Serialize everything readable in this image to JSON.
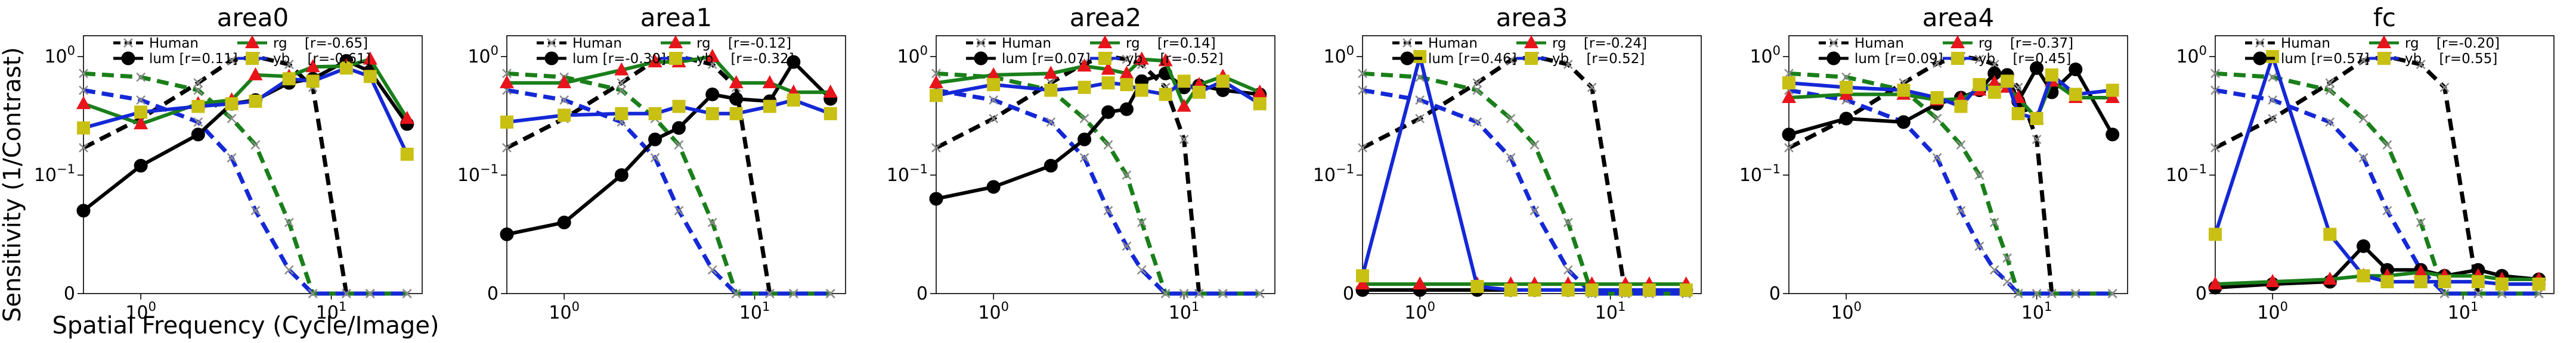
{
  "figure": {
    "ylabel": "Sensitivity (1/Contrast)",
    "xlabel": "Spatial Frequency (Cycle/Image)"
  },
  "styles": {
    "human": {
      "color": "#808080",
      "marker": "x"
    },
    "lum": {
      "color": "#000000",
      "marker": "circle"
    },
    "rg": {
      "color": "#1a7f1a",
      "marker": "triangle",
      "marker_color": "#e8141b"
    },
    "yb": {
      "color": "#1428d6",
      "marker": "square",
      "marker_color": "#c8c012"
    }
  },
  "chart_data": [
    {
      "type": "line",
      "title": "area0",
      "x_scale": "log",
      "y_scale": "symlog",
      "xlim": [
        0.5,
        30
      ],
      "ylim": [
        0,
        1.5
      ],
      "x_ticks": [
        {
          "v": 1,
          "label": "10^0"
        },
        {
          "v": 10,
          "label": "10^1"
        }
      ],
      "y_ticks": [
        {
          "v": 0,
          "label": "0"
        },
        {
          "v": 0.1,
          "label": "10^-1"
        },
        {
          "v": 1,
          "label": "10^0"
        }
      ],
      "legend": {
        "placement": "top",
        "entries": [
          {
            "key": "human",
            "text": "Human"
          },
          {
            "key": "lum",
            "text": "lum [r=0.11]"
          },
          {
            "key": "rg",
            "text": "rg    [r=-0.65]"
          },
          {
            "key": "yb",
            "text": "yb    [r=-0.61]"
          }
        ]
      },
      "x": [
        0.5,
        1,
        2,
        3,
        4,
        6,
        8,
        12,
        16,
        25
      ],
      "human": {
        "lum": [
          0.17,
          0.3,
          0.6,
          0.93,
          1.0,
          0.86,
          0.55,
          0.0,
          0.0,
          0.0
        ],
        "rg": [
          0.72,
          0.67,
          0.52,
          0.3,
          0.18,
          0.06,
          0.0,
          0.0,
          0.0,
          0.0
        ],
        "yb": [
          0.52,
          0.43,
          0.28,
          0.14,
          0.07,
          0.02,
          0.0,
          0.0,
          0.0,
          0.0
        ]
      },
      "series": [
        {
          "key": "lum",
          "values": [
            0.07,
            0.12,
            0.22,
            0.4,
            0.43,
            0.6,
            0.65,
            0.92,
            0.75,
            0.27
          ]
        },
        {
          "key": "rg",
          "values": [
            0.4,
            0.27,
            0.4,
            0.43,
            0.7,
            0.68,
            0.82,
            0.83,
            0.95,
            0.3
          ]
        },
        {
          "key": "yb",
          "values": [
            0.25,
            0.34,
            0.38,
            0.4,
            0.42,
            0.65,
            0.62,
            0.8,
            0.68,
            0.15
          ]
        }
      ]
    },
    {
      "type": "line",
      "title": "area1",
      "x_scale": "log",
      "y_scale": "symlog",
      "xlim": [
        0.5,
        30
      ],
      "ylim": [
        0,
        1.5
      ],
      "x_ticks": [
        {
          "v": 1,
          "label": "10^0"
        },
        {
          "v": 10,
          "label": "10^1"
        }
      ],
      "y_ticks": [
        {
          "v": 0,
          "label": "0"
        },
        {
          "v": 0.1,
          "label": "10^-1"
        },
        {
          "v": 1,
          "label": "10^0"
        }
      ],
      "legend": {
        "placement": "top",
        "entries": [
          {
            "key": "human",
            "text": "Human"
          },
          {
            "key": "lum",
            "text": "lum [r=-0.30]"
          },
          {
            "key": "rg",
            "text": "rg    [r=-0.12]"
          },
          {
            "key": "yb",
            "text": "yb    [r=-0.32]"
          }
        ]
      },
      "x": [
        0.5,
        1,
        2,
        3,
        4,
        6,
        8,
        12,
        16,
        25
      ],
      "human": {
        "lum": [
          0.17,
          0.3,
          0.6,
          0.93,
          1.0,
          0.86,
          0.55,
          0.0,
          0.0,
          0.0
        ],
        "rg": [
          0.72,
          0.67,
          0.52,
          0.3,
          0.18,
          0.06,
          0.0,
          0.0,
          0.0,
          0.0
        ],
        "yb": [
          0.52,
          0.43,
          0.28,
          0.14,
          0.07,
          0.02,
          0.0,
          0.0,
          0.0,
          0.0
        ]
      },
      "series": [
        {
          "key": "lum",
          "values": [
            0.05,
            0.06,
            0.1,
            0.2,
            0.25,
            0.48,
            0.44,
            0.42,
            0.9,
            0.44
          ]
        },
        {
          "key": "rg",
          "values": [
            0.6,
            0.6,
            0.77,
            0.9,
            0.9,
            1.0,
            0.6,
            0.6,
            0.5,
            0.5
          ]
        },
        {
          "key": "yb",
          "values": [
            0.28,
            0.32,
            0.33,
            0.33,
            0.38,
            0.33,
            0.33,
            0.38,
            0.43,
            0.33
          ]
        }
      ]
    },
    {
      "type": "line",
      "title": "area2",
      "x_scale": "log",
      "y_scale": "symlog",
      "xlim": [
        0.5,
        30
      ],
      "ylim": [
        0,
        1.5
      ],
      "x_ticks": [
        {
          "v": 1,
          "label": "10^0"
        },
        {
          "v": 10,
          "label": "10^1"
        }
      ],
      "y_ticks": [
        {
          "v": 0,
          "label": "0"
        },
        {
          "v": 0.1,
          "label": "10^-1"
        },
        {
          "v": 1,
          "label": "10^0"
        }
      ],
      "legend": {
        "placement": "top",
        "entries": [
          {
            "key": "human",
            "text": "Human"
          },
          {
            "key": "lum",
            "text": "lum [r=0.07]"
          },
          {
            "key": "rg",
            "text": "rg    [r=0.14]"
          },
          {
            "key": "yb",
            "text": "yb    [r=-0.52]"
          }
        ]
      },
      "x": [
        0.5,
        1,
        2,
        3,
        4,
        5,
        6,
        8,
        10,
        12,
        16,
        25
      ],
      "human": {
        "lum": [
          0.17,
          0.3,
          0.6,
          0.88,
          1.0,
          0.95,
          0.86,
          0.55,
          0.2,
          0.0,
          0.0,
          0.0
        ],
        "rg": [
          0.72,
          0.67,
          0.52,
          0.3,
          0.18,
          0.1,
          0.06,
          0.0,
          0.0,
          0.0,
          0.0,
          0.0
        ],
        "yb": [
          0.52,
          0.43,
          0.28,
          0.14,
          0.07,
          0.04,
          0.02,
          0.0,
          0.0,
          0.0,
          0.0,
          0.0
        ]
      },
      "series": [
        {
          "key": "lum",
          "values": [
            0.08,
            0.09,
            0.12,
            0.2,
            0.34,
            0.36,
            0.62,
            0.72,
            0.55,
            0.57,
            0.52,
            0.48
          ]
        },
        {
          "key": "rg",
          "values": [
            0.6,
            0.7,
            0.72,
            0.83,
            0.78,
            0.72,
            0.95,
            0.92,
            0.38,
            0.58,
            0.68,
            0.5
          ]
        },
        {
          "key": "yb",
          "values": [
            0.47,
            0.58,
            0.52,
            0.55,
            0.6,
            0.58,
            0.52,
            0.48,
            0.62,
            0.5,
            0.62,
            0.4
          ]
        }
      ]
    },
    {
      "type": "line",
      "title": "area3",
      "x_scale": "log",
      "y_scale": "symlog",
      "xlim": [
        0.5,
        30
      ],
      "ylim": [
        0,
        1.5
      ],
      "x_ticks": [
        {
          "v": 1,
          "label": "10^0"
        },
        {
          "v": 10,
          "label": "10^1"
        }
      ],
      "y_ticks": [
        {
          "v": 0,
          "label": "0"
        },
        {
          "v": 0.1,
          "label": "10^-1"
        },
        {
          "v": 1,
          "label": "10^0"
        }
      ],
      "legend": {
        "placement": "top",
        "entries": [
          {
            "key": "human",
            "text": "Human"
          },
          {
            "key": "lum",
            "text": "lum [r=0.46]"
          },
          {
            "key": "rg",
            "text": "rg    [r=-0.24]"
          },
          {
            "key": "yb",
            "text": "yb    [r=0.52]"
          }
        ]
      },
      "x": [
        0.5,
        1,
        2,
        3,
        4,
        6,
        8,
        12,
        16,
        25
      ],
      "human": {
        "lum": [
          0.17,
          0.3,
          0.6,
          0.93,
          1.0,
          0.86,
          0.55,
          0.0,
          0.0,
          0.0
        ],
        "rg": [
          0.72,
          0.67,
          0.52,
          0.3,
          0.18,
          0.06,
          0.0,
          0.0,
          0.0,
          0.0
        ],
        "yb": [
          0.52,
          0.43,
          0.28,
          0.14,
          0.07,
          0.02,
          0.0,
          0.0,
          0.0,
          0.0
        ]
      },
      "series": [
        {
          "key": "lum",
          "values": [
            0.003,
            0.003,
            0.003,
            0.003,
            0.003,
            0.003,
            0.003,
            0.003,
            0.003,
            0.003
          ]
        },
        {
          "key": "rg",
          "values": [
            0.008,
            0.008,
            0.008,
            0.008,
            0.008,
            0.008,
            0.008,
            0.008,
            0.008,
            0.008
          ]
        },
        {
          "key": "yb",
          "values": [
            0.015,
            1.0,
            0.006,
            0.003,
            0.003,
            0.003,
            0.003,
            0.003,
            0.003,
            0.003
          ]
        }
      ]
    },
    {
      "type": "line",
      "title": "area4",
      "x_scale": "log",
      "y_scale": "symlog",
      "xlim": [
        0.5,
        30
      ],
      "ylim": [
        0,
        1.5
      ],
      "x_ticks": [
        {
          "v": 1,
          "label": "10^0"
        },
        {
          "v": 10,
          "label": "10^1"
        }
      ],
      "y_ticks": [
        {
          "v": 0,
          "label": "0"
        },
        {
          "v": 0.1,
          "label": "10^-1"
        },
        {
          "v": 1,
          "label": "10^0"
        }
      ],
      "legend": {
        "placement": "top",
        "entries": [
          {
            "key": "human",
            "text": "Human"
          },
          {
            "key": "lum",
            "text": "lum [r=0.09]"
          },
          {
            "key": "rg",
            "text": "rg    [r=-0.37]"
          },
          {
            "key": "yb",
            "text": "yb    [r=0.45]"
          }
        ]
      },
      "x": [
        0.5,
        1,
        2,
        3,
        4,
        5,
        6,
        7,
        8,
        10,
        12,
        16,
        25
      ],
      "human": {
        "lum": [
          0.17,
          0.3,
          0.6,
          0.88,
          1.0,
          0.95,
          0.86,
          0.7,
          0.55,
          0.2,
          0.0,
          0.0,
          0.0
        ],
        "rg": [
          0.72,
          0.67,
          0.52,
          0.3,
          0.18,
          0.1,
          0.06,
          0.03,
          0.0,
          0.0,
          0.0,
          0.0,
          0.0
        ],
        "yb": [
          0.52,
          0.43,
          0.28,
          0.14,
          0.07,
          0.04,
          0.02,
          0.01,
          0.0,
          0.0,
          0.0,
          0.0,
          0.0
        ]
      },
      "series": [
        {
          "key": "lum",
          "values": [
            0.22,
            0.3,
            0.28,
            0.4,
            0.45,
            0.52,
            0.72,
            0.7,
            0.42,
            0.8,
            0.5,
            0.78,
            0.22
          ]
        },
        {
          "key": "rg",
          "values": [
            0.45,
            0.48,
            0.48,
            0.43,
            0.44,
            0.52,
            0.6,
            0.55,
            0.45,
            0.3,
            0.62,
            0.45,
            0.45
          ]
        },
        {
          "key": "yb",
          "values": [
            0.6,
            0.55,
            0.52,
            0.45,
            0.38,
            0.58,
            0.5,
            0.62,
            0.33,
            0.3,
            0.7,
            0.48,
            0.52
          ]
        }
      ]
    },
    {
      "type": "line",
      "title": "fc",
      "x_scale": "log",
      "y_scale": "symlog",
      "xlim": [
        0.5,
        30
      ],
      "ylim": [
        0,
        1.5
      ],
      "x_ticks": [
        {
          "v": 1,
          "label": "10^0"
        },
        {
          "v": 10,
          "label": "10^1"
        }
      ],
      "y_ticks": [
        {
          "v": 0,
          "label": "0"
        },
        {
          "v": 0.1,
          "label": "10^-1"
        },
        {
          "v": 1,
          "label": "10^0"
        }
      ],
      "legend": {
        "placement": "top",
        "entries": [
          {
            "key": "human",
            "text": "Human"
          },
          {
            "key": "lum",
            "text": "lum [r=0.57]"
          },
          {
            "key": "rg",
            "text": "rg    [r=-0.20]"
          },
          {
            "key": "yb",
            "text": "yb    [r=0.55]"
          }
        ]
      },
      "x": [
        0.5,
        1,
        2,
        3,
        4,
        6,
        8,
        12,
        16,
        25
      ],
      "human": {
        "lum": [
          0.17,
          0.3,
          0.6,
          0.93,
          1.0,
          0.86,
          0.55,
          0.0,
          0.0,
          0.0
        ],
        "rg": [
          0.72,
          0.67,
          0.52,
          0.3,
          0.18,
          0.06,
          0.0,
          0.0,
          0.0,
          0.0
        ],
        "yb": [
          0.52,
          0.43,
          0.28,
          0.14,
          0.07,
          0.02,
          0.0,
          0.0,
          0.0,
          0.0
        ]
      },
      "series": [
        {
          "key": "lum",
          "values": [
            0.005,
            0.008,
            0.01,
            0.04,
            0.02,
            0.02,
            0.015,
            0.02,
            0.015,
            0.012
          ]
        },
        {
          "key": "rg",
          "values": [
            0.008,
            0.01,
            0.012,
            0.015,
            0.015,
            0.018,
            0.015,
            0.015,
            0.012,
            0.012
          ]
        },
        {
          "key": "yb",
          "values": [
            0.05,
            1.0,
            0.05,
            0.015,
            0.01,
            0.01,
            0.01,
            0.01,
            0.008,
            0.008
          ]
        }
      ]
    }
  ]
}
